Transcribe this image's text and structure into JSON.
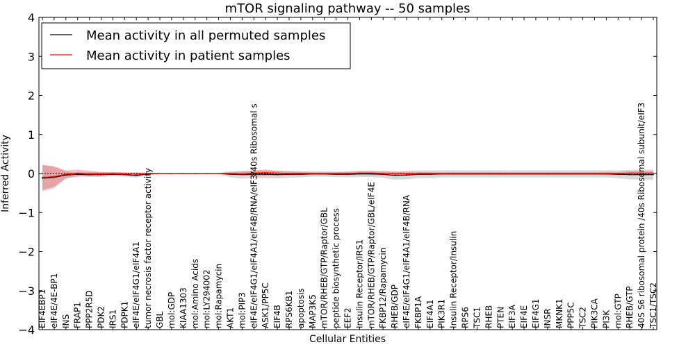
{
  "chart_data": {
    "type": "line",
    "title": "mTOR signaling pathway -- 50 samples",
    "xlabel": "Cellular Entities",
    "ylabel": "Inferred Activity",
    "ylim": [
      -4,
      4
    ],
    "yticks": [
      -4,
      -3,
      -2,
      -1,
      0,
      1,
      2,
      3,
      4
    ],
    "ytick_labels": [
      "−4",
      "−3",
      "−2",
      "−1",
      "0",
      "1",
      "2",
      "3",
      "4"
    ],
    "grid": false,
    "legend_position": "top-left",
    "categories": [
      "EIF4EBP1",
      "eIF4E/4E-BP1",
      "INS",
      "FRAP1",
      "PPP2R5D",
      "PDK2",
      "IRS1",
      "PDPK1",
      "eIF4E/eIF4G1/eIF4A1",
      "tumor necrosis factor receptor activity",
      "GBL",
      "mol:GDP",
      "KIAA1303",
      "mol:Amino Acids",
      "mol:LY294002",
      "mol:Rapamycin",
      "AKT1",
      "mol:PIP3",
      "eIF4E/eIF4G1/eIF4A1/eIF4B/RNA/eIF3/40s Ribosomal s",
      "ASK1/PP5C",
      "EIF4B",
      "RPS6KB1",
      "apoptosis",
      "MAP3K5",
      "mTOR/RHEB/GTP/Raptor/GBL",
      "peptide biosynthetic process",
      "EEF2",
      "Insulin Receptor/IRS1",
      "mTOR/RHEB/GTP/Raptor/GBL/eIF4E",
      "FKBP12/Rapamycin",
      "RHEB/GDP",
      "eIF4E/eIF4G1/eIF4A1/eIF4B/RNA",
      "FKBP1A",
      "EIF4A1",
      "PIK3R1",
      "Insulin Receptor/Insulin",
      "RPS6",
      "TSC1",
      "RHEB",
      "PTEN",
      "EIF3A",
      "EIF4E",
      "EIF4G1",
      "INSR",
      "MKNK1",
      "PPP5C",
      "TSC2",
      "PIK3CA",
      "PI3K",
      "mol:GTP",
      "RHEB/GTP",
      "40S S6 ribosomal protein /40s Ribosomal subunit/eIF3",
      "TSC1/TSC2"
    ],
    "series": [
      {
        "name": "Mean activity in all permuted samples",
        "color": "#000000",
        "values": [
          -0.12,
          -0.1,
          -0.04,
          -0.02,
          -0.03,
          -0.03,
          -0.02,
          -0.03,
          -0.05,
          -0.01,
          0.0,
          0.0,
          0.0,
          0.0,
          0.0,
          0.0,
          -0.02,
          -0.03,
          -0.02,
          -0.02,
          -0.03,
          -0.02,
          -0.02,
          -0.01,
          -0.01,
          -0.02,
          -0.02,
          -0.01,
          -0.01,
          -0.02,
          -0.05,
          -0.04,
          -0.02,
          -0.02,
          -0.01,
          -0.01,
          -0.01,
          -0.01,
          -0.01,
          -0.01,
          -0.01,
          -0.01,
          -0.01,
          -0.01,
          -0.01,
          -0.01,
          -0.01,
          -0.01,
          -0.01,
          -0.02,
          -0.03,
          -0.03,
          -0.03
        ],
        "band": [
          0.34,
          0.28,
          0.09,
          0.04,
          0.06,
          0.06,
          0.05,
          0.05,
          0.06,
          0.02,
          0.01,
          0.01,
          0.01,
          0.01,
          0.01,
          0.01,
          0.08,
          0.1,
          0.09,
          0.1,
          0.1,
          0.09,
          0.08,
          0.07,
          0.07,
          0.07,
          0.08,
          0.08,
          0.08,
          0.09,
          0.11,
          0.11,
          0.1,
          0.1,
          0.09,
          0.09,
          0.09,
          0.09,
          0.09,
          0.09,
          0.09,
          0.09,
          0.09,
          0.09,
          0.09,
          0.09,
          0.09,
          0.09,
          0.09,
          0.1,
          0.12,
          0.13,
          0.13
        ]
      },
      {
        "name": "Mean activity in patient samples",
        "color": "#ff0000",
        "values": [
          -0.1,
          -0.08,
          -0.02,
          0.01,
          0.0,
          -0.01,
          0.0,
          -0.01,
          -0.02,
          0.0,
          0.0,
          0.0,
          0.0,
          0.0,
          0.0,
          0.0,
          0.0,
          0.0,
          0.01,
          0.02,
          0.01,
          0.0,
          0.0,
          0.0,
          0.0,
          0.0,
          0.0,
          0.01,
          0.01,
          0.0,
          -0.01,
          -0.01,
          0.0,
          0.0,
          0.0,
          0.0,
          0.0,
          0.0,
          0.0,
          0.0,
          0.0,
          0.0,
          0.0,
          0.0,
          0.0,
          0.0,
          0.0,
          0.0,
          0.0,
          0.0,
          0.01,
          0.01,
          0.01
        ],
        "band": [
          0.32,
          0.26,
          0.1,
          0.09,
          0.07,
          0.05,
          0.04,
          0.04,
          0.05,
          0.02,
          0.01,
          0.01,
          0.01,
          0.01,
          0.01,
          0.01,
          0.03,
          0.05,
          0.07,
          0.08,
          0.06,
          0.05,
          0.04,
          0.03,
          0.03,
          0.03,
          0.04,
          0.05,
          0.05,
          0.05,
          0.05,
          0.05,
          0.04,
          0.03,
          0.03,
          0.03,
          0.03,
          0.03,
          0.03,
          0.03,
          0.03,
          0.03,
          0.03,
          0.03,
          0.03,
          0.03,
          0.03,
          0.03,
          0.04,
          0.04,
          0.05,
          0.05,
          0.05
        ]
      }
    ]
  }
}
